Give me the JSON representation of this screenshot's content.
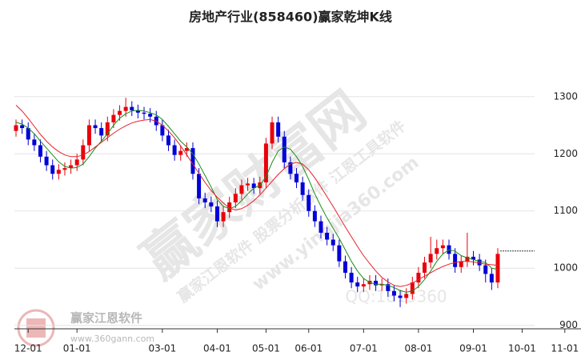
{
  "chart_data": {
    "type": "candlestick",
    "title": "房地产行业(858460)赢家乾坤K线",
    "categories": [
      null,
      null,
      "12-01",
      null,
      null,
      null,
      null,
      null,
      null,
      null,
      "01-01",
      null,
      null,
      null,
      null,
      null,
      null,
      null,
      null,
      null,
      null,
      null,
      null,
      null,
      "03-01",
      null,
      null,
      null,
      null,
      null,
      null,
      null,
      null,
      "04-01",
      null,
      null,
      null,
      null,
      null,
      null,
      null,
      "05-01",
      null,
      null,
      null,
      null,
      null,
      null,
      "06-01",
      null,
      null,
      null,
      null,
      null,
      null,
      null,
      null,
      "07-01",
      null,
      null,
      null,
      null,
      null,
      null,
      null,
      null,
      "08-01",
      null,
      null,
      null,
      null,
      null,
      null,
      null,
      null,
      "09-01",
      null,
      null,
      null,
      null,
      null,
      null,
      null,
      "10-01",
      null,
      null,
      null,
      null,
      null,
      null,
      "11-01"
    ],
    "open": [
      1240,
      1250,
      1245,
      1225,
      1215,
      1195,
      1180,
      1165,
      1172,
      1175,
      1180,
      1190,
      1215,
      1250,
      1245,
      1232,
      1255,
      1268,
      1275,
      1282,
      1276,
      1272,
      1270,
      1265,
      1250,
      1232,
      1215,
      1198,
      1205,
      1210,
      1165,
      1122,
      1115,
      1108,
      1082,
      1098,
      1115,
      1130,
      1145,
      1148,
      1140,
      1150,
      1218,
      1255,
      1230,
      1185,
      1165,
      1150,
      1128,
      1100,
      1082,
      1062,
      1050,
      1040,
      1012,
      992,
      975,
      968,
      972,
      978,
      970,
      972,
      960,
      952,
      948,
      955,
      975,
      992,
      1010,
      1025,
      1035,
      1040,
      1025,
      1002,
      1012,
      1020,
      1015,
      1005,
      990,
      975,
      null,
      null,
      null,
      null,
      null,
      null,
      null,
      null,
      null,
      null,
      null
    ],
    "high": [
      1260,
      1260,
      1255,
      1235,
      1225,
      1205,
      1190,
      1182,
      1185,
      1190,
      1200,
      1225,
      1260,
      1260,
      1255,
      1265,
      1278,
      1285,
      1298,
      1292,
      1286,
      1282,
      1280,
      1275,
      1260,
      1242,
      1225,
      1215,
      1220,
      1220,
      1175,
      1132,
      1125,
      1118,
      1108,
      1125,
      1140,
      1155,
      1158,
      1158,
      1160,
      1228,
      1265,
      1265,
      1240,
      1195,
      1175,
      1160,
      1138,
      1110,
      1092,
      1072,
      1060,
      1050,
      1022,
      1002,
      985,
      982,
      988,
      988,
      982,
      982,
      970,
      962,
      965,
      985,
      1002,
      1020,
      1055,
      1050,
      1050,
      1050,
      1035,
      1022,
      1062,
      1030,
      1025,
      1015,
      1000,
      1035,
      null,
      null,
      null,
      null,
      null,
      null,
      null,
      null,
      null,
      null,
      null
    ],
    "low": [
      1230,
      1235,
      1215,
      1205,
      1185,
      1170,
      1155,
      1155,
      1162,
      1165,
      1170,
      1180,
      1205,
      1235,
      1222,
      1222,
      1245,
      1258,
      1265,
      1266,
      1262,
      1260,
      1255,
      1240,
      1222,
      1205,
      1188,
      1188,
      1195,
      1155,
      1112,
      1105,
      1098,
      1072,
      1072,
      1088,
      1105,
      1120,
      1135,
      1130,
      1130,
      1140,
      1208,
      1220,
      1175,
      1155,
      1140,
      1118,
      1090,
      1072,
      1052,
      1040,
      1030,
      1002,
      982,
      965,
      958,
      958,
      962,
      960,
      960,
      950,
      942,
      932,
      938,
      945,
      965,
      982,
      1000,
      1015,
      1025,
      1015,
      992,
      992,
      1002,
      1005,
      995,
      975,
      962,
      965,
      null,
      null,
      null,
      null,
      null,
      null,
      null,
      null,
      null,
      null,
      null
    ],
    "close": [
      1250,
      1245,
      1225,
      1215,
      1195,
      1180,
      1165,
      1172,
      1175,
      1180,
      1190,
      1215,
      1250,
      1245,
      1232,
      1255,
      1268,
      1275,
      1282,
      1276,
      1272,
      1270,
      1265,
      1250,
      1232,
      1215,
      1198,
      1205,
      1210,
      1165,
      1122,
      1115,
      1108,
      1082,
      1098,
      1115,
      1130,
      1145,
      1148,
      1140,
      1150,
      1218,
      1255,
      1230,
      1185,
      1165,
      1150,
      1128,
      1100,
      1082,
      1062,
      1050,
      1040,
      1012,
      992,
      975,
      968,
      972,
      978,
      970,
      972,
      960,
      952,
      948,
      955,
      975,
      992,
      1010,
      1025,
      1035,
      1040,
      1025,
      1002,
      1012,
      1020,
      1015,
      1005,
      990,
      975,
      1025,
      null,
      null,
      null,
      null,
      null,
      null,
      null,
      null,
      null,
      null,
      null
    ],
    "up_color": "#e8000b",
    "down_color": "#0000d8",
    "series": [
      {
        "color": "#1a8c1a",
        "values": [
          1255,
          1252,
          1245,
          1235,
          1222,
          1210,
          1198,
          1186,
          1178,
          1175,
          1176,
          1182,
          1195,
          1210,
          1222,
          1235,
          1250,
          1262,
          1270,
          1275,
          1276,
          1275,
          1272,
          1268,
          1260,
          1248,
          1235,
          1222,
          1212,
          1200,
          1182,
          1162,
          1142,
          1120,
          1108,
          1104,
          1108,
          1118,
          1130,
          1140,
          1145,
          1160,
          1185,
          1205,
          1212,
          1208,
          1195,
          1178,
          1155,
          1130,
          1108,
          1088,
          1070,
          1052,
          1032,
          1012,
          995,
          982,
          975,
          972,
          972,
          970,
          966,
          961,
          958,
          960,
          968,
          980,
          995,
          1012,
          1025,
          1032,
          1030,
          1022,
          1018,
          1015,
          1012,
          1010,
          1000,
          998,
          null,
          null,
          null,
          null,
          null,
          null,
          null,
          null,
          null,
          null,
          null
        ]
      },
      {
        "color": "#e8202a",
        "values": [
          1285,
          1275,
          1262,
          1248,
          1234,
          1222,
          1212,
          1204,
          1198,
          1195,
          1195,
          1198,
          1204,
          1212,
          1220,
          1228,
          1236,
          1243,
          1249,
          1254,
          1257,
          1259,
          1260,
          1257,
          1250,
          1240,
          1228,
          1214,
          1198,
          1182,
          1166,
          1150,
          1136,
          1124,
          1114,
          1105,
          1102,
          1104,
          1110,
          1118,
          1128,
          1140,
          1152,
          1164,
          1174,
          1182,
          1185,
          1182,
          1172,
          1158,
          1142,
          1125,
          1108,
          1090,
          1072,
          1055,
          1038,
          1022,
          1008,
          995,
          984,
          976,
          970,
          968,
          970,
          974,
          980,
          986,
          992,
          998,
          1003,
          1007,
          1010,
          1012,
          1012,
          1011,
          1009,
          1007,
          1006,
          1005,
          null,
          null,
          null,
          null,
          null,
          null,
          null,
          null,
          null,
          null,
          null
        ]
      }
    ],
    "last_price_line": 1030,
    "ylim": [
      894,
      1420
    ],
    "yticks": [
      900,
      1000,
      1100,
      1200,
      1300
    ],
    "grid": true,
    "watermarks": [
      "赢家财富网",
      "赢家江恩软件 股票分析软件 江恩工具软件",
      "www.yingjia360.com",
      "QQ:1813360"
    ],
    "logo": {
      "name": "赢家江恩软件",
      "url": "www.360gann.com"
    }
  }
}
